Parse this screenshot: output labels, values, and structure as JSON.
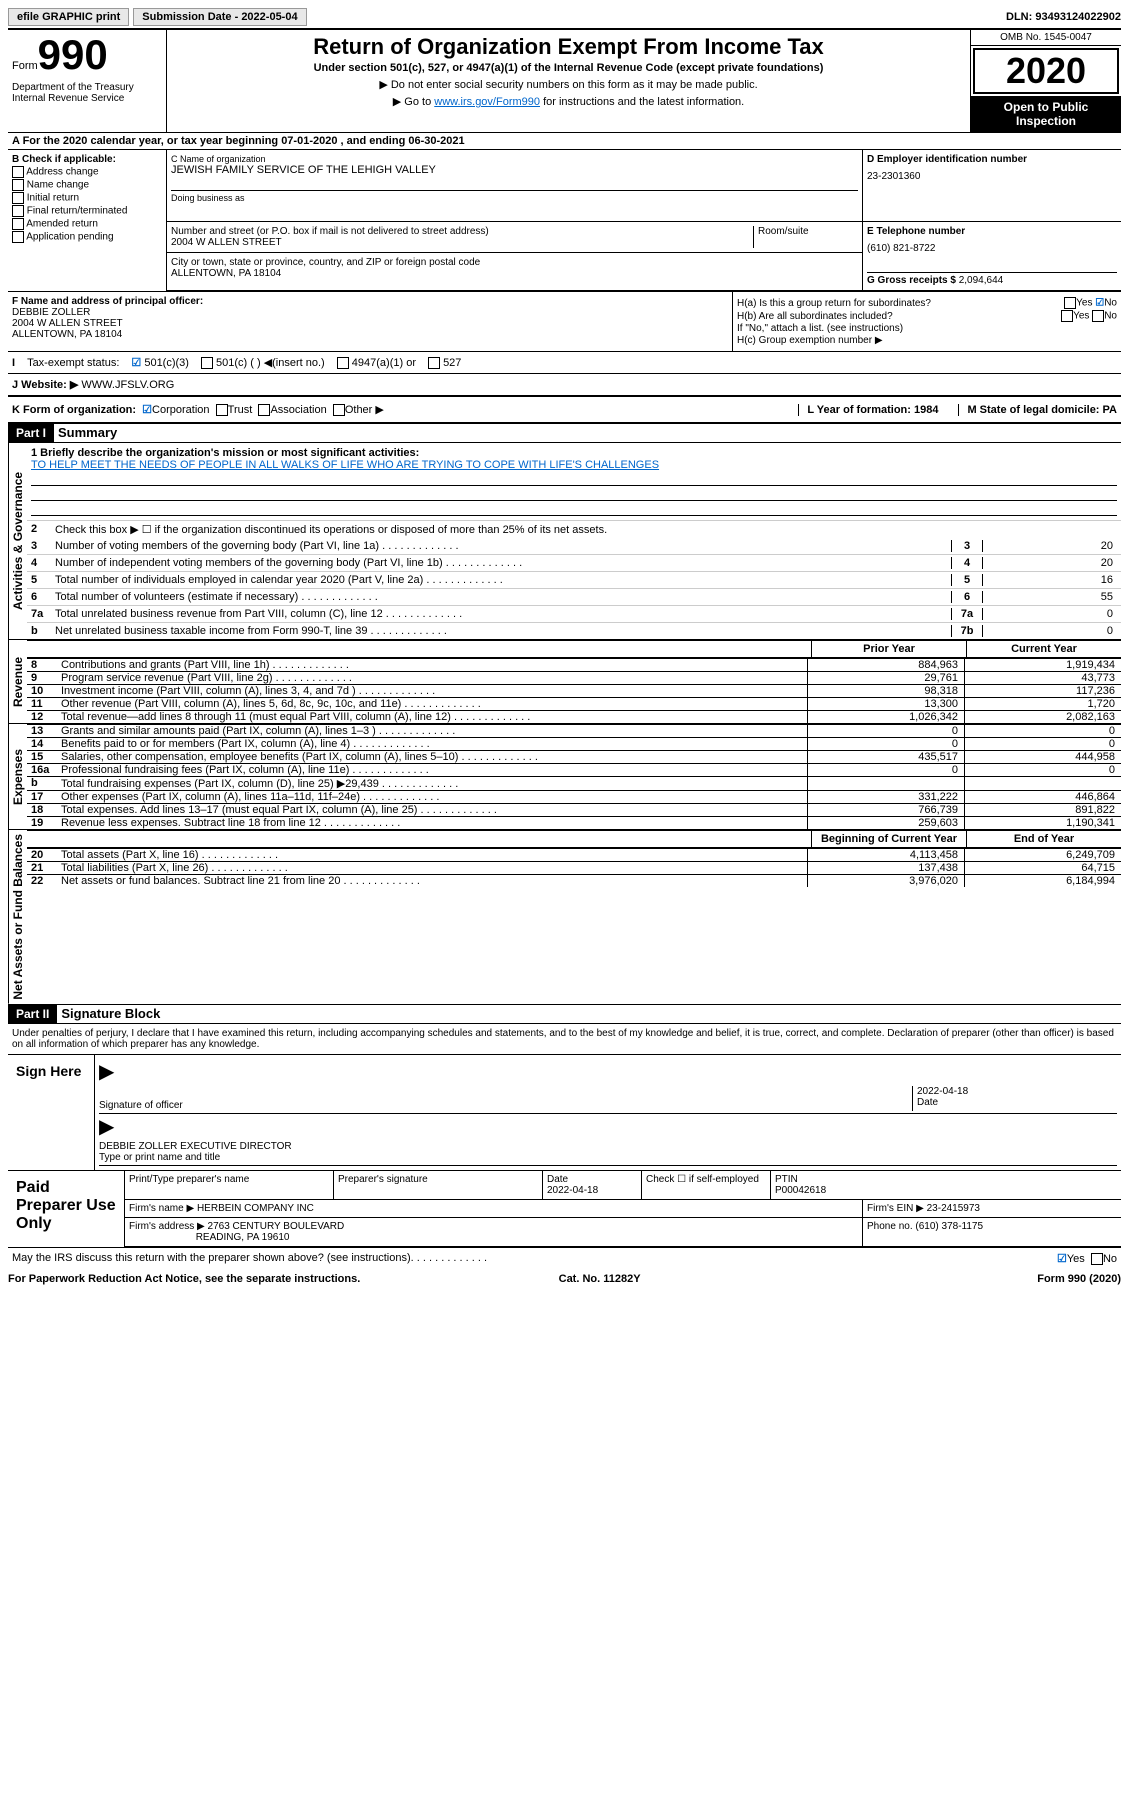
{
  "topbar": {
    "efile": "efile GRAPHIC print",
    "submission_label": "Submission Date - 2022-05-04",
    "dln_label": "DLN: 93493124022902"
  },
  "header": {
    "form_word": "Form",
    "form_num": "990",
    "dept": "Department of the Treasury Internal Revenue Service",
    "title": "Return of Organization Exempt From Income Tax",
    "subtitle": "Under section 501(c), 527, or 4947(a)(1) of the Internal Revenue Code (except private foundations)",
    "note1": "▶ Do not enter social security numbers on this form as it may be made public.",
    "note2_pre": "▶ Go to ",
    "note2_link": "www.irs.gov/Form990",
    "note2_post": " for instructions and the latest information.",
    "omb": "OMB No. 1545-0047",
    "year": "2020",
    "inspection": "Open to Public Inspection"
  },
  "line_a": "A    For the 2020 calendar year, or tax year beginning 07-01-2020    , and ending 06-30-2021",
  "col_b": {
    "hdr": "B Check if applicable:",
    "opts": [
      "Address change",
      "Name change",
      "Initial return",
      "Final return/terminated",
      "Amended return",
      "Application pending"
    ]
  },
  "name": {
    "lbl": "C Name of organization",
    "val": "JEWISH FAMILY SERVICE OF THE LEHIGH VALLEY",
    "dba_lbl": "Doing business as"
  },
  "ein": {
    "lbl": "D Employer identification number",
    "val": "23-2301360"
  },
  "addr": {
    "street_lbl": "Number and street (or P.O. box if mail is not delivered to street address)",
    "street_val": "2004 W ALLEN STREET",
    "room_lbl": "Room/suite",
    "city_lbl": "City or town, state or province, country, and ZIP or foreign postal code",
    "city_val": "ALLENTOWN, PA  18104"
  },
  "tel": {
    "lbl": "E Telephone number",
    "val": "(610) 821-8722"
  },
  "gross": {
    "lbl": "G Gross receipts $ ",
    "val": "2,094,644"
  },
  "officer": {
    "lbl": "F Name and address of principal officer:",
    "name": "DEBBIE ZOLLER",
    "addr1": "2004 W ALLEN STREET",
    "addr2": "ALLENTOWN, PA  18104"
  },
  "h": {
    "a": "H(a)  Is this a group return for subordinates?",
    "b": "H(b)  Are all subordinates included?",
    "note": "If \"No,\" attach a list. (see instructions)",
    "c": "H(c)  Group exemption number ▶"
  },
  "status": {
    "lbl": "Tax-exempt status:",
    "o1": "501(c)(3)",
    "o2": "501(c) (   ) ◀(insert no.)",
    "o3": "4947(a)(1) or",
    "o4": "527"
  },
  "website": {
    "lbl": "J   Website: ▶",
    "val": "WWW.JFSLV.ORG"
  },
  "k": {
    "lbl": "K Form of organization:",
    "opts": [
      "Corporation",
      "Trust",
      "Association",
      "Other ▶"
    ],
    "l": "L Year of formation: 1984",
    "m": "M State of legal domicile: PA"
  },
  "part1": {
    "hdr": "Part I",
    "title": "Summary"
  },
  "summary": {
    "l1_lbl": "1  Briefly describe the organization's mission or most significant activities:",
    "l1_val": "TO HELP MEET THE NEEDS OF PEOPLE IN ALL WALKS OF LIFE WHO ARE TRYING TO COPE WITH LIFE'S CHALLENGES",
    "l2": "Check this box ▶ ☐  if the organization discontinued its operations or disposed of more than 25% of its net assets.",
    "rows_gov": [
      {
        "n": "3",
        "t": "Number of voting members of the governing body (Part VI, line 1a)",
        "b": "3",
        "v": "20"
      },
      {
        "n": "4",
        "t": "Number of independent voting members of the governing body (Part VI, line 1b)",
        "b": "4",
        "v": "20"
      },
      {
        "n": "5",
        "t": "Total number of individuals employed in calendar year 2020 (Part V, line 2a)",
        "b": "5",
        "v": "16"
      },
      {
        "n": "6",
        "t": "Total number of volunteers (estimate if necessary)",
        "b": "6",
        "v": "55"
      },
      {
        "n": "7a",
        "t": "Total unrelated business revenue from Part VIII, column (C), line 12",
        "b": "7a",
        "v": "0"
      },
      {
        "n": "b",
        "t": "Net unrelated business taxable income from Form 990-T, line 39",
        "b": "7b",
        "v": "0"
      }
    ],
    "hdr_prior": "Prior Year",
    "hdr_current": "Current Year",
    "rev_rows": [
      {
        "n": "8",
        "t": "Contributions and grants (Part VIII, line 1h)",
        "p": "884,963",
        "c": "1,919,434"
      },
      {
        "n": "9",
        "t": "Program service revenue (Part VIII, line 2g)",
        "p": "29,761",
        "c": "43,773"
      },
      {
        "n": "10",
        "t": "Investment income (Part VIII, column (A), lines 3, 4, and 7d )",
        "p": "98,318",
        "c": "117,236"
      },
      {
        "n": "11",
        "t": "Other revenue (Part VIII, column (A), lines 5, 6d, 8c, 9c, 10c, and 11e)",
        "p": "13,300",
        "c": "1,720"
      },
      {
        "n": "12",
        "t": "Total revenue—add lines 8 through 11 (must equal Part VIII, column (A), line 12)",
        "p": "1,026,342",
        "c": "2,082,163"
      }
    ],
    "exp_rows": [
      {
        "n": "13",
        "t": "Grants and similar amounts paid (Part IX, column (A), lines 1–3 )",
        "p": "0",
        "c": "0"
      },
      {
        "n": "14",
        "t": "Benefits paid to or for members (Part IX, column (A), line 4)",
        "p": "0",
        "c": "0"
      },
      {
        "n": "15",
        "t": "Salaries, other compensation, employee benefits (Part IX, column (A), lines 5–10)",
        "p": "435,517",
        "c": "444,958"
      },
      {
        "n": "16a",
        "t": "Professional fundraising fees (Part IX, column (A), line 11e)",
        "p": "0",
        "c": "0"
      },
      {
        "n": "b",
        "t": "Total fundraising expenses (Part IX, column (D), line 25) ▶29,439",
        "p": "",
        "c": ""
      },
      {
        "n": "17",
        "t": "Other expenses (Part IX, column (A), lines 11a–11d, 11f–24e)",
        "p": "331,222",
        "c": "446,864"
      },
      {
        "n": "18",
        "t": "Total expenses. Add lines 13–17 (must equal Part IX, column (A), line 25)",
        "p": "766,739",
        "c": "891,822"
      },
      {
        "n": "19",
        "t": "Revenue less expenses. Subtract line 18 from line 12",
        "p": "259,603",
        "c": "1,190,341"
      }
    ],
    "hdr_begin": "Beginning of Current Year",
    "hdr_end": "End of Year",
    "net_rows": [
      {
        "n": "20",
        "t": "Total assets (Part X, line 16)",
        "p": "4,113,458",
        "c": "6,249,709"
      },
      {
        "n": "21",
        "t": "Total liabilities (Part X, line 26)",
        "p": "137,438",
        "c": "64,715"
      },
      {
        "n": "22",
        "t": "Net assets or fund balances. Subtract line 21 from line 20",
        "p": "3,976,020",
        "c": "6,184,994"
      }
    ]
  },
  "tabs": {
    "gov": "Activities & Governance",
    "rev": "Revenue",
    "exp": "Expenses",
    "net": "Net Assets or Fund Balances"
  },
  "part2": {
    "hdr": "Part II",
    "title": "Signature Block",
    "intro": "Under penalties of perjury, I declare that I have examined this return, including accompanying schedules and statements, and to the best of my knowledge and belief, it is true, correct, and complete. Declaration of preparer (other than officer) is based on all information of which preparer has any knowledge."
  },
  "sign": {
    "lbl": "Sign Here",
    "sig_lbl": "Signature of officer",
    "date_lbl": "Date",
    "date_val": "2022-04-18",
    "name_lbl": "Type or print name and title",
    "name_val": "DEBBIE ZOLLER  EXECUTIVE DIRECTOR"
  },
  "prep": {
    "lbl": "Paid Preparer Use Only",
    "h1": "Print/Type preparer's name",
    "h2": "Preparer's signature",
    "h3": "Date",
    "h3v": "2022-04-18",
    "h4": "Check ☐ if self-employed",
    "h5": "PTIN",
    "h5v": "P00042618",
    "firm_lbl": "Firm's name    ▶",
    "firm_val": "HERBEIN COMPANY INC",
    "ein_lbl": "Firm's EIN ▶",
    "ein_val": "23-2415973",
    "addr_lbl": "Firm's address ▶",
    "addr_val1": "2763 CENTURY BOULEVARD",
    "addr_val2": "READING, PA  19610",
    "phone_lbl": "Phone no.",
    "phone_val": "(610) 378-1175"
  },
  "discuss": "May the IRS discuss this return with the preparer shown above? (see instructions)",
  "footer": {
    "left": "For Paperwork Reduction Act Notice, see the separate instructions.",
    "mid": "Cat. No. 11282Y",
    "right": "Form 990 (2020)"
  },
  "yn": {
    "yes": "Yes",
    "no": "No"
  }
}
